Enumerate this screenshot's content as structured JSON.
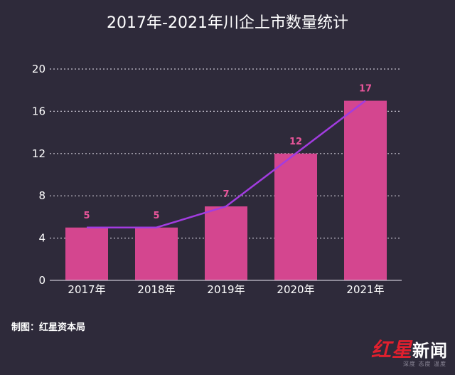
{
  "title": "2017年-2021年川企上市数量统计",
  "credit": "制图：红星资本局",
  "logo": {
    "accent": "红星",
    "main": "新闻",
    "sub": "深度 态度 温度"
  },
  "colors": {
    "background": "#2e2a3a",
    "bar": "#d4468f",
    "line": "#a23ce0",
    "data_label": "#e8559a",
    "grid": "#c8c4d0",
    "text": "#ffffff"
  },
  "chart_data": {
    "type": "bar",
    "categories": [
      "2017年",
      "2018年",
      "2019年",
      "2020年",
      "2021年"
    ],
    "values": [
      5,
      5,
      7,
      12,
      17
    ],
    "data_labels": [
      "5",
      "5",
      "7",
      "12",
      "17"
    ],
    "overlay_line": true,
    "ylim": [
      0,
      20
    ],
    "yticks": [
      "0",
      "4",
      "8",
      "12",
      "16",
      "20"
    ],
    "title": "2017年-2021年川企上市数量统计",
    "xlabel": "",
    "ylabel": "",
    "grid": "horizontal dotted",
    "legend": "none"
  }
}
